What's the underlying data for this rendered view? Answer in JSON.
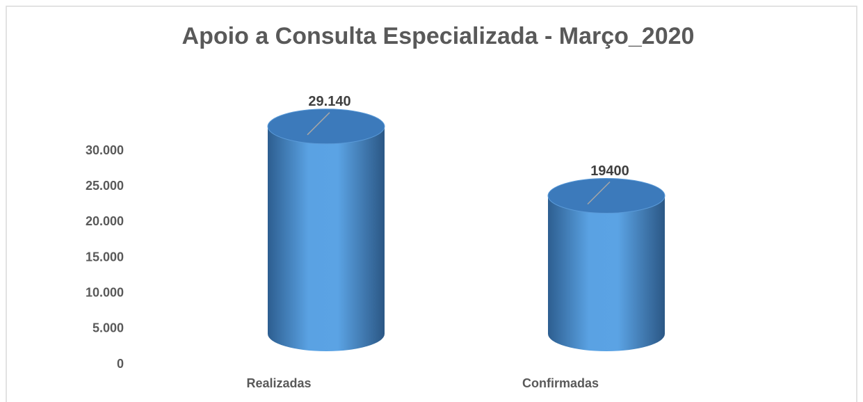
{
  "chart_data": {
    "type": "cylinder",
    "title": "Apoio a Consulta Especializada - Março_2020",
    "categories": [
      "Realizadas",
      "Confirmadas"
    ],
    "values": [
      29140,
      19400
    ],
    "value_labels": [
      "29.140",
      "19400"
    ],
    "color": "#4a8fd4",
    "ylim": [
      0,
      30000
    ],
    "yticks": [
      0,
      {
        "value": 5000,
        "label": "5.000"
      },
      {
        "value": 10000,
        "label": "10.000"
      },
      {
        "value": 15000,
        "label": "15.000"
      },
      {
        "value": 20000,
        "label": "20.000"
      },
      {
        "value": 25000,
        "label": "25.000"
      },
      {
        "value": 30000,
        "label": "30.000"
      }
    ],
    "grid": false
  }
}
